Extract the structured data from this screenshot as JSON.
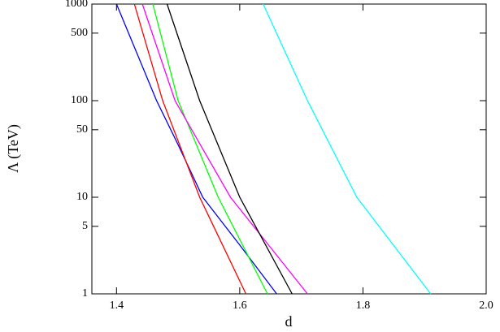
{
  "chart_data": {
    "type": "line",
    "x_label": "d",
    "y_label": "Λ (TeV)",
    "xlim": [
      1.36,
      2.0
    ],
    "xticks": [
      1.4,
      1.6,
      1.8,
      {
        "value": 2,
        "label": "2.0"
      }
    ],
    "ylim": [
      1,
      1000
    ],
    "yticks": [
      1,
      5,
      10,
      50,
      100,
      500,
      1000
    ],
    "ylog": true,
    "series": [
      {
        "color": "#0000ff",
        "x": [
          1.4,
          1.465,
          1.5,
          1.54,
          1.6,
          1.66
        ],
        "values": [
          1000,
          100,
          35,
          10,
          3.2,
          1
        ]
      },
      {
        "color": "#ff0000",
        "x": [
          1.429,
          1.475,
          1.535,
          1.61
        ],
        "values": [
          1000,
          100,
          10,
          1
        ]
      },
      {
        "color": "#00ff00",
        "x": [
          1.459,
          1.5,
          1.565,
          1.645
        ],
        "values": [
          1000,
          100,
          10,
          1
        ]
      },
      {
        "color": "#ff00ff",
        "x": [
          1.442,
          1.495,
          1.585,
          1.71
        ],
        "values": [
          1000,
          100,
          10,
          1
        ]
      },
      {
        "color": "#000000",
        "x": [
          1.482,
          1.535,
          1.6,
          1.685
        ],
        "values": [
          1000,
          100,
          10,
          1
        ]
      },
      {
        "color": "#00ffff",
        "x": [
          1.638,
          1.71,
          1.79,
          1.91
        ],
        "values": [
          1000,
          100,
          10,
          1
        ]
      }
    ]
  }
}
